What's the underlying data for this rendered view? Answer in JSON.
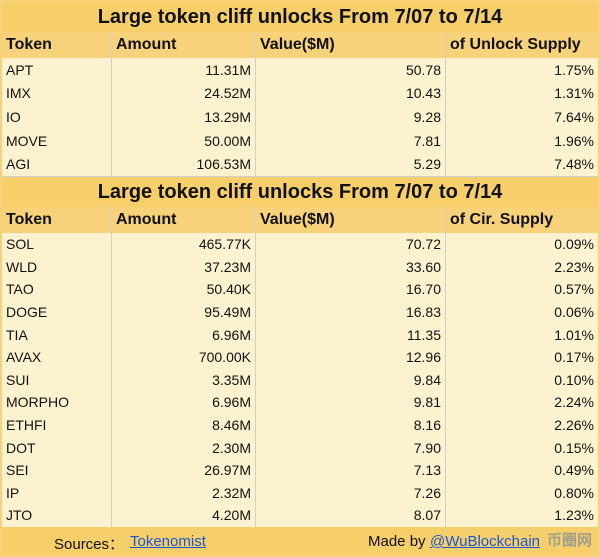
{
  "table1": {
    "title": "Large token cliff unlocks From  7/07 to 7/14",
    "headers": [
      "Token",
      "Amount",
      "Value($M)",
      "of Unlock Supply"
    ],
    "rows": [
      [
        "APT",
        "11.31M",
        "50.78",
        "1.75%"
      ],
      [
        "IMX",
        "24.52M",
        "10.43",
        "1.31%"
      ],
      [
        "IO",
        "13.29M",
        "9.28",
        "7.64%"
      ],
      [
        "MOVE",
        "50.00M",
        "7.81",
        "1.96%"
      ],
      [
        "AGI",
        "106.53M",
        "5.29",
        "7.48%"
      ]
    ]
  },
  "table2": {
    "title": "Large token cliff unlocks From  7/07 to 7/14",
    "headers": [
      "Token",
      "Amount",
      "Value($M)",
      "of Cir. Supply"
    ],
    "rows": [
      [
        "SOL",
        "465.77K",
        "70.72",
        "0.09%"
      ],
      [
        "WLD",
        "37.23M",
        "33.60",
        "2.23%"
      ],
      [
        "TAO",
        "50.40K",
        "16.70",
        "0.57%"
      ],
      [
        "DOGE",
        "95.49M",
        "16.83",
        "0.06%"
      ],
      [
        "TIA",
        "6.96M",
        "11.35",
        "1.01%"
      ],
      [
        "AVAX",
        "700.00K",
        "12.96",
        "0.17%"
      ],
      [
        "SUI",
        "3.35M",
        "9.84",
        "0.10%"
      ],
      [
        "MORPHO",
        "6.96M",
        "9.81",
        "2.24%"
      ],
      [
        "ETHFI",
        "8.46M",
        "8.16",
        "2.26%"
      ],
      [
        "DOT",
        "2.30M",
        "7.90",
        "0.15%"
      ],
      [
        "SEI",
        "26.97M",
        "7.13",
        "0.49%"
      ],
      [
        "IP",
        "2.32M",
        "7.26",
        "0.80%"
      ],
      [
        "JTO",
        "4.20M",
        "8.07",
        "1.23%"
      ]
    ]
  },
  "footer": {
    "sources_label": "Sources：",
    "sources_link": "Tokenomist",
    "made_by_label": "Made by",
    "made_by_link": "@WuBlockchain"
  },
  "watermark": "币圈网"
}
